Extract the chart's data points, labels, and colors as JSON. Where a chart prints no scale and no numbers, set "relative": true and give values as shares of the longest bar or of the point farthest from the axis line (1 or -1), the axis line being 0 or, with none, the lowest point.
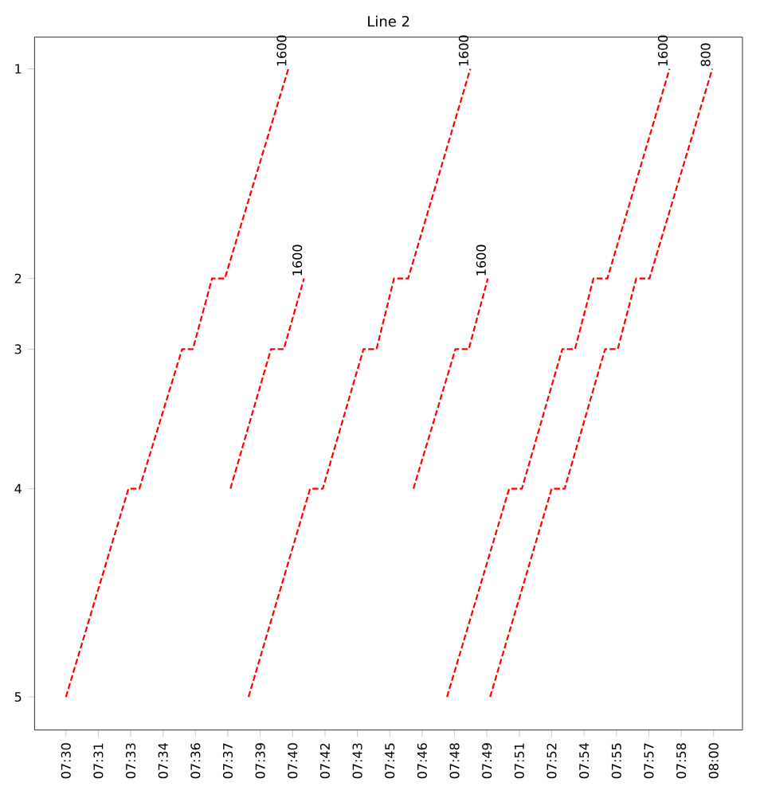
{
  "chart_data": {
    "type": "line",
    "title": "Line 2",
    "line_style": "dashed",
    "relative": true,
    "xlim": [
      7.4758,
      8.0223
    ],
    "xticks": [
      {
        "value": 7.5,
        "label": "07:30"
      },
      {
        "value": 7.525,
        "label": "07:31"
      },
      {
        "value": 7.55,
        "label": "07:33"
      },
      {
        "value": 7.575,
        "label": "07:34"
      },
      {
        "value": 7.6,
        "label": "07:36"
      },
      {
        "value": 7.625,
        "label": "07:37"
      },
      {
        "value": 7.65,
        "label": "07:39"
      },
      {
        "value": 7.675,
        "label": "07:40"
      },
      {
        "value": 7.7,
        "label": "07:42"
      },
      {
        "value": 7.725,
        "label": "07:43"
      },
      {
        "value": 7.75,
        "label": "07:45"
      },
      {
        "value": 7.775,
        "label": "07:46"
      },
      {
        "value": 7.8,
        "label": "07:48"
      },
      {
        "value": 7.825,
        "label": "07:49"
      },
      {
        "value": 7.85,
        "label": "07:51"
      },
      {
        "value": 7.875,
        "label": "07:52"
      },
      {
        "value": 7.9,
        "label": "07:54"
      },
      {
        "value": 7.925,
        "label": "07:55"
      },
      {
        "value": 7.95,
        "label": "07:57"
      },
      {
        "value": 7.975,
        "label": "07:58"
      },
      {
        "value": 8.0,
        "label": "08:00"
      }
    ],
    "series": [
      {
        "color": "#ff0000",
        "x": [
          7.5,
          7.5483,
          7.5567,
          7.5897,
          7.598,
          7.6128,
          7.6227,
          7.6717
        ],
        "values": [
          0.05,
          0.365,
          0.365,
          0.576,
          0.576,
          0.683,
          0.683,
          1
        ]
      },
      {
        "color": "#ff0000",
        "x": [
          7.627,
          7.6583,
          7.6682,
          7.6838
        ],
        "values": [
          0.365,
          0.576,
          0.576,
          0.683
        ]
      },
      {
        "color": "#ff0000",
        "x": [
          7.641,
          7.6885,
          7.6983,
          7.7297,
          7.7398,
          7.7533,
          7.7642,
          7.8122
        ],
        "values": [
          0.05,
          0.365,
          0.365,
          0.576,
          0.576,
          0.683,
          0.683,
          1
        ]
      },
      {
        "color": "#ff0000",
        "x": [
          7.7683,
          7.8007,
          7.811,
          7.8257
        ],
        "values": [
          0.365,
          0.576,
          0.576,
          0.683
        ]
      },
      {
        "color": "#ff0000",
        "x": [
          7.7942,
          7.8422,
          7.852,
          7.8832,
          7.893,
          7.9073,
          7.918,
          7.966
        ],
        "values": [
          0.05,
          0.365,
          0.365,
          0.576,
          0.576,
          0.683,
          0.683,
          1
        ]
      },
      {
        "color": "#ff0000",
        "x": [
          7.8275,
          7.875,
          7.885,
          7.9162,
          7.926,
          7.9403,
          7.9505,
          7.999
        ],
        "values": [
          0.05,
          0.365,
          0.365,
          0.576,
          0.576,
          0.683,
          0.683,
          1
        ]
      }
    ],
    "annotations": [
      "1",
      "2",
      "3",
      "4",
      "5",
      {
        "text": "1600",
        "x": 7.6717,
        "y": 1
      },
      {
        "text": "1600",
        "x": 7.6838,
        "y": 0.683
      },
      {
        "text": "1600",
        "x": 7.8122,
        "y": 1
      },
      {
        "text": "1600",
        "x": 7.8257,
        "y": 0.683
      },
      {
        "text": "1600",
        "x": 7.966,
        "y": 1
      },
      {
        "text": "800",
        "x": 7.999,
        "y": 1
      }
    ]
  }
}
